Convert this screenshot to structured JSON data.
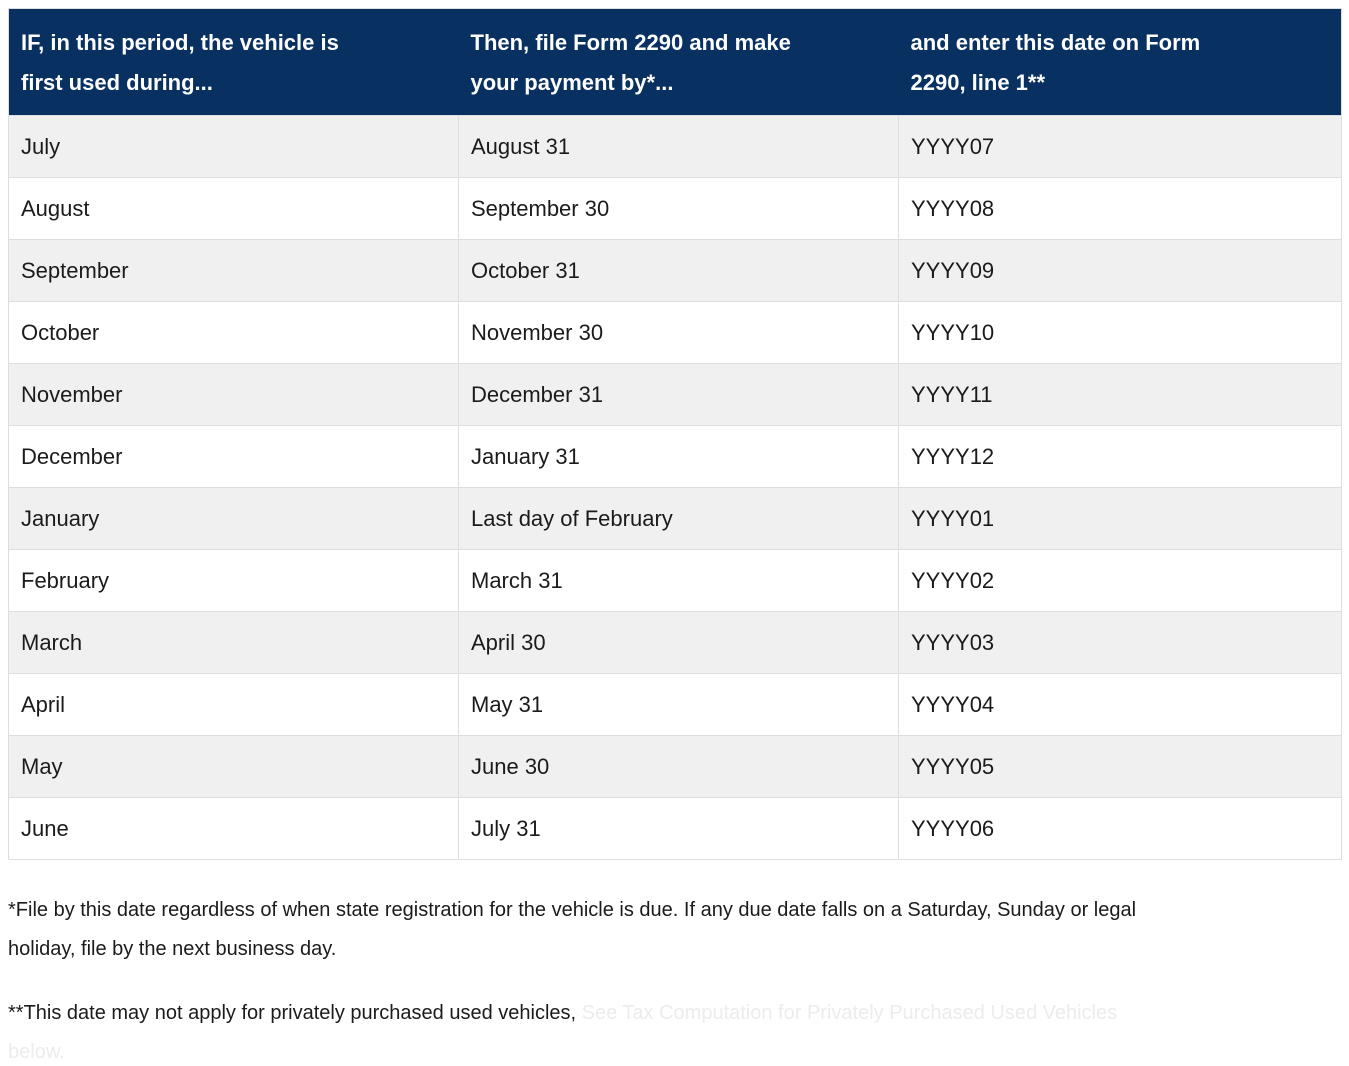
{
  "table": {
    "headers": {
      "period": "IF, in this period, the vehicle is\nfirst used during...",
      "file_by": "Then, file Form 2290 and make\nyour payment by*...",
      "date_code": "and enter this date on Form\n2290, line 1**"
    },
    "rows": [
      {
        "month": "July",
        "file_by": "August 31",
        "date_code": "YYYY07"
      },
      {
        "month": "August",
        "file_by": "September 30",
        "date_code": "YYYY08"
      },
      {
        "month": "September",
        "file_by": "October 31",
        "date_code": "YYYY09"
      },
      {
        "month": "October",
        "file_by": "November 30",
        "date_code": "YYYY10"
      },
      {
        "month": "November",
        "file_by": "December 31",
        "date_code": "YYYY11"
      },
      {
        "month": "December",
        "file_by": "January 31",
        "date_code": "YYYY12"
      },
      {
        "month": "January",
        "file_by": "Last day of February",
        "date_code": "YYYY01"
      },
      {
        "month": "February",
        "file_by": "March 31",
        "date_code": "YYYY02"
      },
      {
        "month": "March",
        "file_by": "April 30",
        "date_code": "YYYY03"
      },
      {
        "month": "April",
        "file_by": "May 31",
        "date_code": "YYYY04"
      },
      {
        "month": "May",
        "file_by": "June 30",
        "date_code": "YYYY05"
      },
      {
        "month": "June",
        "file_by": "July 31",
        "date_code": "YYYY06"
      }
    ]
  },
  "footnotes": {
    "note1": "*File by this date regardless of when state registration for the vehicle is due. If any due date falls on a Saturday, Sunday or legal\nholiday, file by the next business day.",
    "note2_static": "**This date may not apply for privately purchased used vehicles, ",
    "note2_faded": "See Tax Computation for Privately Purchased Used Vehicles\nbelow."
  },
  "colors": {
    "header_bg": "#083162",
    "header_text": "#ffffff",
    "row_alt_bg": "#f0f0f0",
    "row_bg": "#ffffff",
    "border": "#dcdee0",
    "body_text": "#1b1b1b",
    "faded_text": "#ececec"
  }
}
